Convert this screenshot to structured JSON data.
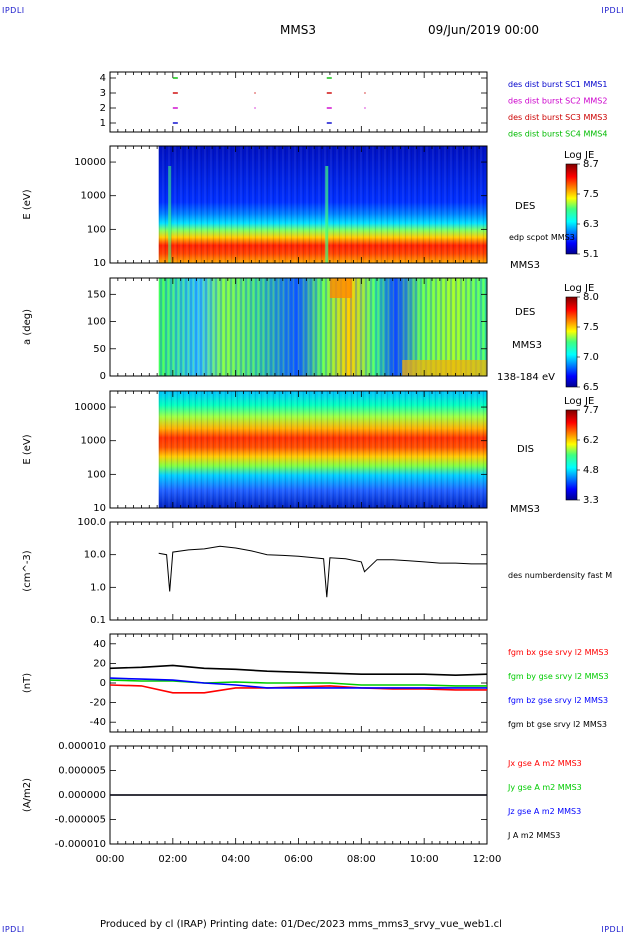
{
  "corners": {
    "top_left": "IPDLI",
    "top_right": "IPDLI",
    "bottom_left": "IPDLI",
    "bottom_right": "IPDLI"
  },
  "header": {
    "title": "MMS3",
    "date": "09/Jun/2019 00:00"
  },
  "footer": {
    "text": "Produced by cl (IRAP)   Printing date: 01/Dec/2023   mms_mms3_srvy_vue_web1.cl"
  },
  "colors": {
    "des_c1": "#0000cc",
    "des_c2": "#cc00cc",
    "des_c3": "#cc0000",
    "des_c4": "#00bb00",
    "bx": "#ff0000",
    "by": "#00cc00",
    "bz": "#0000ff",
    "bt": "#000000"
  },
  "x_ticks": [
    "00:00",
    "02:00",
    "04:00",
    "06:00",
    "08:00",
    "10:00",
    "12:00"
  ],
  "chart_data": [
    {
      "type": "scatter",
      "panel": "burst",
      "yticks": [
        "1",
        "2",
        "3",
        "4"
      ],
      "legend": [
        "des dist burst SC1 MMS1",
        "des dist burst SC2 MMS2",
        "des dist burst SC3 MMS3",
        "des dist burst SC4 MMS4"
      ],
      "burst_times_hours": [
        2.0,
        4.6,
        6.9,
        8.1
      ],
      "xlim_hours": [
        0,
        12
      ]
    },
    {
      "type": "heatmap",
      "panel": "des_energy",
      "ylabel": "E (eV)",
      "yticks": [
        "10",
        "100",
        "1000",
        "10000"
      ],
      "right_labels": [
        "DES",
        "edp scpot MMS3",
        "MMS3"
      ],
      "colorbar": {
        "title": "Log JE",
        "ticks": [
          "8.7",
          "7.5",
          "6.3",
          "5.1"
        ]
      },
      "data_start_hour": 1.55
    },
    {
      "type": "heatmap",
      "panel": "des_pitch",
      "ylabel": "a (deg)",
      "yticks": [
        "0",
        "50",
        "100",
        "150"
      ],
      "right_labels": [
        "DES",
        "MMS3",
        "138-184 eV"
      ],
      "colorbar": {
        "title": "Log JE",
        "ticks": [
          "8.0",
          "7.5",
          "7.0",
          "6.5"
        ]
      },
      "data_start_hour": 1.55
    },
    {
      "type": "heatmap",
      "panel": "dis_energy",
      "ylabel": "E (eV)",
      "yticks": [
        "10",
        "100",
        "1000",
        "10000"
      ],
      "right_labels": [
        "DIS",
        "MMS3"
      ],
      "colorbar": {
        "title": "Log JE",
        "ticks": [
          "7.7",
          "6.2",
          "4.8",
          "3.3"
        ]
      },
      "data_start_hour": 1.55
    },
    {
      "type": "line",
      "panel": "density",
      "ylabel": "(cm^-3)",
      "yticks": [
        "0.1",
        "1.0",
        "10.0",
        "100.0"
      ],
      "series_label": "des numberdensity fast M",
      "x_hours": [
        1.55,
        1.8,
        1.9,
        2.0,
        2.5,
        3.0,
        3.5,
        4.0,
        4.5,
        5.0,
        5.5,
        6.0,
        6.5,
        6.8,
        6.9,
        7.0,
        7.5,
        8.0,
        8.1,
        8.5,
        9.0,
        9.5,
        10.0,
        10.5,
        11.0,
        11.5,
        12.0
      ],
      "y": [
        11,
        10,
        0.75,
        12,
        14,
        15,
        18,
        16,
        13,
        10,
        9.5,
        9,
        8,
        7.5,
        0.5,
        8,
        7.5,
        6,
        3,
        7,
        7,
        6.5,
        6,
        5.5,
        5.5,
        5.2,
        5.2
      ]
    },
    {
      "type": "line",
      "panel": "magnetic_field",
      "ylabel": "(nT)",
      "yticks": [
        "-40",
        "-20",
        "0",
        "20",
        "40"
      ],
      "ylim": [
        -50,
        50
      ],
      "legend": [
        "fgm bx gse srvy l2 MMS3",
        "fgm by gse srvy l2 MMS3",
        "fgm bz gse srvy l2 MMS3",
        "fgm bt gse srvy l2 MMS3"
      ],
      "x_hours": [
        0,
        1.0,
        2.0,
        3.0,
        4.0,
        5.0,
        6.0,
        7.0,
        8.0,
        9.0,
        10.0,
        11.0,
        12.0
      ],
      "series": [
        {
          "name": "fgm bx gse srvy l2 MMS3",
          "values": [
            -2,
            -3,
            -10,
            -10,
            -5,
            -5,
            -4,
            -3,
            -5,
            -6,
            -6,
            -7,
            -7
          ]
        },
        {
          "name": "fgm by gse srvy l2 MMS3",
          "values": [
            3,
            2,
            2,
            0,
            1,
            0,
            0,
            0,
            -2,
            -2,
            -2,
            -3,
            -3
          ]
        },
        {
          "name": "fgm bz gse srvy l2 MMS3",
          "values": [
            5,
            4,
            3,
            0,
            -2,
            -5,
            -5,
            -5,
            -5,
            -5,
            -5,
            -5,
            -5
          ]
        },
        {
          "name": "fgm bt gse srvy l2 MMS3",
          "values": [
            15,
            16,
            18,
            15,
            14,
            12,
            11,
            10,
            9,
            9,
            9,
            8,
            9
          ]
        }
      ]
    },
    {
      "type": "line",
      "panel": "current",
      "ylabel": "(A/m2)",
      "yticks": [
        "-0.000010",
        "-0.000005",
        "0.000000",
        "0.000005",
        "0.000010"
      ],
      "ylim": [
        -1e-05,
        1e-05
      ],
      "legend": [
        "Jx gse A m2 MMS3",
        "Jy gse A m2 MMS3",
        "Jz gse A m2 MMS3",
        "J A m2 MMS3"
      ],
      "x_hours": [
        0,
        12
      ],
      "series": [
        {
          "name": "Jx gse A m2 MMS3",
          "values": [
            0,
            0
          ]
        },
        {
          "name": "Jy gse A m2 MMS3",
          "values": [
            0,
            0
          ]
        },
        {
          "name": "Jz gse A m2 MMS3",
          "values": [
            0,
            0
          ]
        },
        {
          "name": "J A m2 MMS3",
          "values": [
            0,
            0
          ]
        }
      ]
    }
  ]
}
